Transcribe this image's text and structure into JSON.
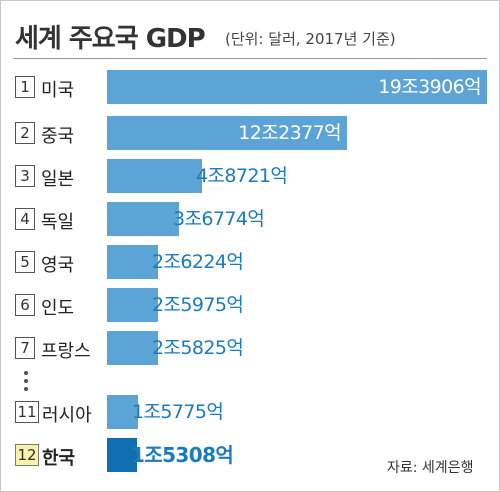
{
  "header": {
    "title": "세계 주요국 GDP",
    "unit": "(단위: 달러, 2017년 기준)"
  },
  "source": "자료: 세계은행",
  "colors": {
    "bar": "#5ba4d5",
    "bar_highlight": "#0f6fb0",
    "value_inside": "#ffffff",
    "value_outside": "#1a7bbf",
    "rank_highlight_bg": "#f7f3a8"
  },
  "chart_data": {
    "type": "bar",
    "orientation": "horizontal",
    "unit": "달러",
    "categories": [
      "미국",
      "중국",
      "일본",
      "독일",
      "영국",
      "인도",
      "프랑스",
      "러시아",
      "한국"
    ],
    "ranks": [
      "1",
      "2",
      "3",
      "4",
      "5",
      "6",
      "7",
      "11",
      "12"
    ],
    "values": [
      19390600000000,
      12237700000000,
      4872100000000,
      3677400000000,
      2622400000000,
      2597500000000,
      2582500000000,
      1577500000000,
      1530800000000
    ],
    "value_labels": [
      "19조3906억",
      "12조2377억",
      "4조8721억",
      "3조6774억",
      "2조6224억",
      "2조5975억",
      "2조5825억",
      "1조5775억",
      "1조5308억"
    ],
    "highlight": "한국",
    "gap_after_rank": "7",
    "grid": false,
    "legend": "none"
  }
}
